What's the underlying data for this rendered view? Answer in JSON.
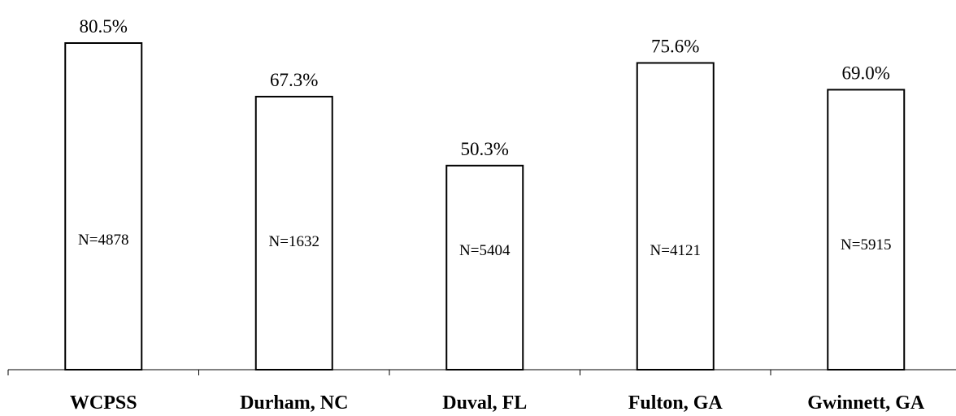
{
  "chart_data": {
    "type": "bar",
    "title": "",
    "xlabel": "",
    "ylabel": "",
    "ylim": [
      0,
      85
    ],
    "grid": false,
    "categories": [
      "WCPSS",
      "Durham, NC",
      "Duval, FL",
      "Fulton, GA",
      "Gwinnett, GA"
    ],
    "values": [
      80.5,
      67.3,
      50.3,
      75.6,
      69.0
    ],
    "value_labels": [
      "80.5%",
      "67.3%",
      "50.3%",
      "75.6%",
      "69.0%"
    ],
    "n_labels": [
      "N=4878",
      "N=1632",
      "N=5404",
      "N=4121",
      "N=5915"
    ],
    "colors": {
      "bar_fill": "#ffffff",
      "bar_stroke": "#000000",
      "axis": "#000000"
    }
  }
}
